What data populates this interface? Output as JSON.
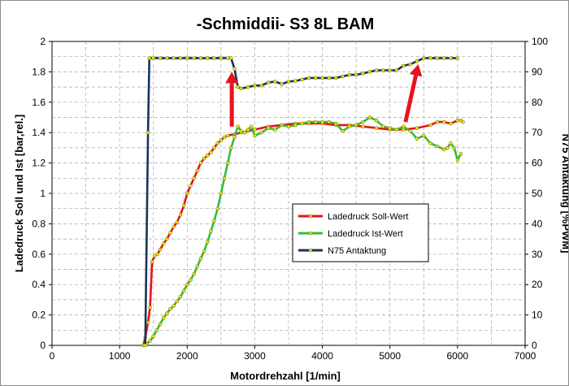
{
  "chart_data": {
    "type": "line",
    "title": "-Schmiddii- S3 8L BAM",
    "xlabel": "Motordrehzahl [1/min]",
    "ylabel": "Ladedruck Soll und Ist [bar,rel.]",
    "y2label": "N75 Antaktung [%PWM]",
    "xlim": [
      0,
      7000
    ],
    "ylim": [
      0,
      2
    ],
    "y2lim": [
      0,
      100
    ],
    "xticks": [
      "0",
      "1000",
      "2000",
      "3000",
      "4000",
      "5000",
      "6000",
      "7000"
    ],
    "yticks": [
      "0",
      "0.2",
      "0.4",
      "0.6",
      "0.8",
      "1",
      "1.2",
      "1.4",
      "1.6",
      "1.8",
      "2"
    ],
    "y2ticks": [
      "0",
      "10",
      "20",
      "30",
      "40",
      "50",
      "60",
      "70",
      "80",
      "90",
      "100"
    ],
    "grid": true,
    "legend_position": "center-right",
    "series": [
      {
        "name": "Ladedruck Soll-Wert",
        "axis": "left",
        "color": "#e8121e",
        "points": [
          [
            1350,
            0.0
          ],
          [
            1380,
            0.05
          ],
          [
            1420,
            0.15
          ],
          [
            1450,
            0.25
          ],
          [
            1480,
            0.55
          ],
          [
            1520,
            0.59
          ],
          [
            1560,
            0.6
          ],
          [
            1600,
            0.63
          ],
          [
            1650,
            0.67
          ],
          [
            1700,
            0.7
          ],
          [
            1750,
            0.74
          ],
          [
            1800,
            0.78
          ],
          [
            1850,
            0.81
          ],
          [
            1900,
            0.86
          ],
          [
            1950,
            0.92
          ],
          [
            2000,
            1.0
          ],
          [
            2050,
            1.05
          ],
          [
            2100,
            1.1
          ],
          [
            2150,
            1.15
          ],
          [
            2200,
            1.2
          ],
          [
            2250,
            1.23
          ],
          [
            2300,
            1.25
          ],
          [
            2350,
            1.27
          ],
          [
            2400,
            1.3
          ],
          [
            2450,
            1.33
          ],
          [
            2500,
            1.35
          ],
          [
            2550,
            1.37
          ],
          [
            2600,
            1.38
          ],
          [
            2700,
            1.39
          ],
          [
            2800,
            1.4
          ],
          [
            2900,
            1.41
          ],
          [
            3000,
            1.42
          ],
          [
            3200,
            1.44
          ],
          [
            3400,
            1.45
          ],
          [
            3600,
            1.46
          ],
          [
            3800,
            1.46
          ],
          [
            4000,
            1.46
          ],
          [
            4200,
            1.45
          ],
          [
            4400,
            1.45
          ],
          [
            4600,
            1.44
          ],
          [
            4800,
            1.43
          ],
          [
            5000,
            1.42
          ],
          [
            5200,
            1.42
          ],
          [
            5400,
            1.43
          ],
          [
            5600,
            1.45
          ],
          [
            5700,
            1.47
          ],
          [
            5800,
            1.47
          ],
          [
            5900,
            1.46
          ],
          [
            6000,
            1.48
          ],
          [
            6050,
            1.48
          ],
          [
            6080,
            1.47
          ]
        ]
      },
      {
        "name": "Ladedruck Ist-Wert",
        "axis": "left",
        "color": "#2fbf3c",
        "points": [
          [
            1350,
            0.0
          ],
          [
            1400,
            0.01
          ],
          [
            1450,
            0.03
          ],
          [
            1500,
            0.06
          ],
          [
            1550,
            0.1
          ],
          [
            1600,
            0.14
          ],
          [
            1650,
            0.18
          ],
          [
            1700,
            0.21
          ],
          [
            1750,
            0.24
          ],
          [
            1800,
            0.26
          ],
          [
            1850,
            0.29
          ],
          [
            1900,
            0.32
          ],
          [
            1950,
            0.36
          ],
          [
            2000,
            0.4
          ],
          [
            2050,
            0.43
          ],
          [
            2100,
            0.47
          ],
          [
            2150,
            0.52
          ],
          [
            2200,
            0.57
          ],
          [
            2250,
            0.62
          ],
          [
            2300,
            0.68
          ],
          [
            2350,
            0.75
          ],
          [
            2400,
            0.82
          ],
          [
            2450,
            0.9
          ],
          [
            2500,
            1.0
          ],
          [
            2550,
            1.1
          ],
          [
            2600,
            1.2
          ],
          [
            2650,
            1.3
          ],
          [
            2700,
            1.37
          ],
          [
            2750,
            1.44
          ],
          [
            2800,
            1.41
          ],
          [
            2850,
            1.4
          ],
          [
            2900,
            1.42
          ],
          [
            2950,
            1.44
          ],
          [
            3000,
            1.38
          ],
          [
            3100,
            1.4
          ],
          [
            3200,
            1.43
          ],
          [
            3300,
            1.42
          ],
          [
            3400,
            1.45
          ],
          [
            3500,
            1.44
          ],
          [
            3600,
            1.45
          ],
          [
            3700,
            1.46
          ],
          [
            3800,
            1.47
          ],
          [
            3900,
            1.47
          ],
          [
            4000,
            1.47
          ],
          [
            4100,
            1.47
          ],
          [
            4200,
            1.46
          ],
          [
            4300,
            1.41
          ],
          [
            4400,
            1.44
          ],
          [
            4500,
            1.45
          ],
          [
            4600,
            1.47
          ],
          [
            4700,
            1.5
          ],
          [
            4800,
            1.48
          ],
          [
            4900,
            1.44
          ],
          [
            5000,
            1.43
          ],
          [
            5100,
            1.42
          ],
          [
            5200,
            1.44
          ],
          [
            5300,
            1.41
          ],
          [
            5400,
            1.36
          ],
          [
            5500,
            1.38
          ],
          [
            5600,
            1.33
          ],
          [
            5700,
            1.31
          ],
          [
            5800,
            1.29
          ],
          [
            5850,
            1.3
          ],
          [
            5900,
            1.33
          ],
          [
            5950,
            1.3
          ],
          [
            6000,
            1.22
          ],
          [
            6050,
            1.26
          ]
        ]
      },
      {
        "name": "N75 Antaktung",
        "axis": "right",
        "color": "#16345c",
        "points": [
          [
            1380,
            0
          ],
          [
            1420,
            70
          ],
          [
            1440,
            94.5
          ],
          [
            1500,
            94.5
          ],
          [
            1600,
            94.5
          ],
          [
            1700,
            94.5
          ],
          [
            1800,
            94.5
          ],
          [
            1900,
            94.5
          ],
          [
            2000,
            94.5
          ],
          [
            2100,
            94.5
          ],
          [
            2200,
            94.5
          ],
          [
            2300,
            94.5
          ],
          [
            2400,
            94.5
          ],
          [
            2500,
            94.5
          ],
          [
            2600,
            94.5
          ],
          [
            2650,
            94.5
          ],
          [
            2700,
            91
          ],
          [
            2750,
            85
          ],
          [
            2800,
            84.5
          ],
          [
            2900,
            85
          ],
          [
            3000,
            85.5
          ],
          [
            3100,
            85.5
          ],
          [
            3200,
            86.5
          ],
          [
            3300,
            86.8
          ],
          [
            3400,
            86
          ],
          [
            3500,
            86.8
          ],
          [
            3600,
            87
          ],
          [
            3700,
            87.5
          ],
          [
            3800,
            88
          ],
          [
            3900,
            88
          ],
          [
            4000,
            88
          ],
          [
            4100,
            88
          ],
          [
            4200,
            88
          ],
          [
            4300,
            88.5
          ],
          [
            4400,
            89
          ],
          [
            4500,
            89
          ],
          [
            4600,
            89.5
          ],
          [
            4700,
            90
          ],
          [
            4800,
            90.5
          ],
          [
            4900,
            90.5
          ],
          [
            5000,
            90.5
          ],
          [
            5100,
            90.5
          ],
          [
            5200,
            92
          ],
          [
            5300,
            92.5
          ],
          [
            5400,
            93.5
          ],
          [
            5500,
            94.5
          ],
          [
            5600,
            94.5
          ],
          [
            5700,
            94.5
          ],
          [
            5800,
            94.5
          ],
          [
            5900,
            94.5
          ],
          [
            6000,
            94.5
          ]
        ]
      }
    ],
    "annotations": [
      {
        "type": "arrow",
        "color": "#e8121e",
        "from": [
          2660,
          1.44
        ],
        "to": [
          2660,
          1.8
        ]
      },
      {
        "type": "arrow",
        "color": "#e8121e",
        "from": [
          5230,
          1.47
        ],
        "to": [
          5420,
          1.85
        ]
      }
    ]
  }
}
